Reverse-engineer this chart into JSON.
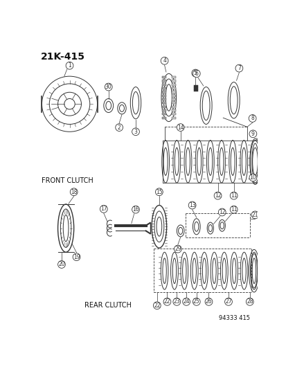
{
  "title": "21K-415",
  "part_number": "94333 415",
  "front_clutch_label": "FRONT CLUTCH",
  "rear_clutch_label": "REAR CLUTCH",
  "bg_color": "#ffffff",
  "lc": "#333333",
  "tc": "#111111",
  "lw": 0.7,
  "callout_fs": 5.5,
  "label_fs": 7.0,
  "title_fs": 10.0
}
